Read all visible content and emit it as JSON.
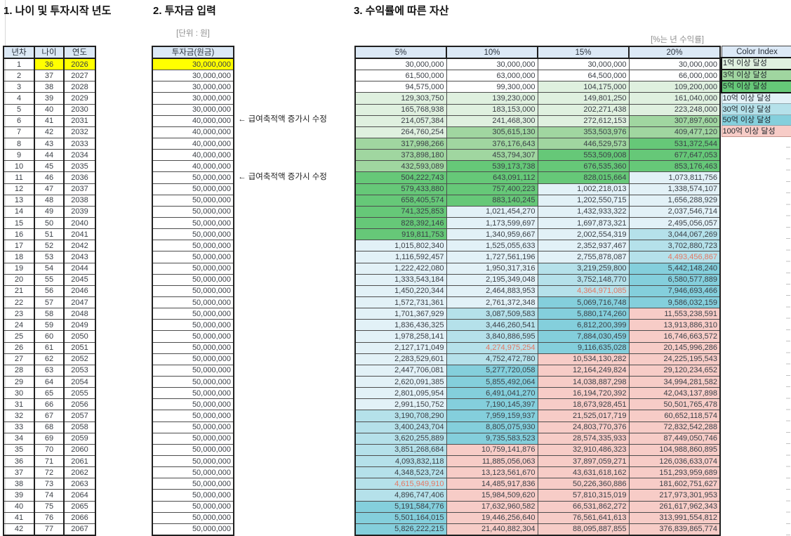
{
  "titles": {
    "section1": "1. 나이 및 투자시작 년도",
    "section2": "2. 투자금 입력",
    "section3": "3. 수익률에 따른 자산"
  },
  "labels": {
    "unit_note": "[단위 : 원]",
    "rate_note": "[%는 년 수익률]"
  },
  "left_table": {
    "headers": [
      "년차",
      "나이",
      "연도"
    ],
    "rows": [
      [
        1,
        36,
        2026
      ],
      [
        2,
        37,
        2027
      ],
      [
        3,
        38,
        2028
      ],
      [
        4,
        39,
        2029
      ],
      [
        5,
        40,
        2030
      ],
      [
        6,
        41,
        2031
      ],
      [
        7,
        42,
        2032
      ],
      [
        8,
        43,
        2033
      ],
      [
        9,
        44,
        2034
      ],
      [
        10,
        45,
        2035
      ],
      [
        11,
        46,
        2036
      ],
      [
        12,
        47,
        2037
      ],
      [
        13,
        48,
        2038
      ],
      [
        14,
        49,
        2039
      ],
      [
        15,
        50,
        2040
      ],
      [
        16,
        51,
        2041
      ],
      [
        17,
        52,
        2042
      ],
      [
        18,
        53,
        2043
      ],
      [
        19,
        54,
        2044
      ],
      [
        20,
        55,
        2045
      ],
      [
        21,
        56,
        2046
      ],
      [
        22,
        57,
        2047
      ],
      [
        23,
        58,
        2048
      ],
      [
        24,
        59,
        2049
      ],
      [
        25,
        60,
        2050
      ],
      [
        26,
        61,
        2051
      ],
      [
        27,
        62,
        2052
      ],
      [
        28,
        63,
        2053
      ],
      [
        29,
        64,
        2054
      ],
      [
        30,
        65,
        2055
      ],
      [
        31,
        66,
        2056
      ],
      [
        32,
        67,
        2057
      ],
      [
        33,
        68,
        2058
      ],
      [
        34,
        69,
        2059
      ],
      [
        35,
        70,
        2060
      ],
      [
        36,
        71,
        2061
      ],
      [
        37,
        72,
        2062
      ],
      [
        38,
        73,
        2063
      ],
      [
        39,
        74,
        2064
      ],
      [
        40,
        75,
        2065
      ],
      [
        41,
        76,
        2066
      ],
      [
        42,
        77,
        2067
      ]
    ]
  },
  "invest_table": {
    "header": "투자금(원금)",
    "values": [
      30000000,
      30000000,
      30000000,
      30000000,
      30000000,
      40000000,
      40000000,
      40000000,
      40000000,
      40000000,
      50000000,
      50000000,
      50000000,
      50000000,
      50000000,
      50000000,
      50000000,
      50000000,
      50000000,
      50000000,
      50000000,
      50000000,
      50000000,
      50000000,
      50000000,
      50000000,
      50000000,
      50000000,
      50000000,
      50000000,
      50000000,
      50000000,
      50000000,
      50000000,
      50000000,
      50000000,
      50000000,
      50000000,
      50000000,
      50000000,
      50000000,
      50000000
    ],
    "annotations": [
      {
        "row": 6,
        "text": "← 급여축적액 증가시 수정"
      },
      {
        "row": 11,
        "text": "← 급여축적액 증가시 수정"
      }
    ]
  },
  "asset_table": {
    "headers": [
      "5%",
      "10%",
      "15%",
      "20%"
    ],
    "rows": [
      [
        30000000,
        30000000,
        30000000,
        30000000
      ],
      [
        61500000,
        63000000,
        64500000,
        66000000
      ],
      [
        94575000,
        99300000,
        104175000,
        109200000
      ],
      [
        129303750,
        139230000,
        149801250,
        161040000
      ],
      [
        165768938,
        183153000,
        202271438,
        223248000
      ],
      [
        214057384,
        241468300,
        272612153,
        307897600
      ],
      [
        264760254,
        305615130,
        353503976,
        409477120
      ],
      [
        317998266,
        376176643,
        446529573,
        531372544
      ],
      [
        373898180,
        453794307,
        553509008,
        677647053
      ],
      [
        432593089,
        539173738,
        676535360,
        853176463
      ],
      [
        504222743,
        643091112,
        828015664,
        1073811756
      ],
      [
        579433880,
        757400223,
        1002218013,
        1338574107
      ],
      [
        658405574,
        883140245,
        1202550715,
        1656288929
      ],
      [
        741325853,
        1021454270,
        1432933322,
        2037546714
      ],
      [
        828392146,
        1173599697,
        1697873321,
        2495056057
      ],
      [
        919811753,
        1340959667,
        2002554319,
        3044067269
      ],
      [
        1015802340,
        1525055633,
        2352937467,
        3702880723
      ],
      [
        1116592457,
        1727561196,
        2755878087,
        4493456867
      ],
      [
        1222422080,
        1950317316,
        3219259800,
        5442148240
      ],
      [
        1333543184,
        2195349048,
        3752148770,
        6580577889
      ],
      [
        1450220344,
        2464883953,
        4364971085,
        7946693466
      ],
      [
        1572731361,
        2761372348,
        5069716748,
        9586032159
      ],
      [
        1701367929,
        3087509583,
        5880174260,
        11553238591
      ],
      [
        1836436325,
        3446260541,
        6812200399,
        13913886310
      ],
      [
        1978258141,
        3840886595,
        7884030459,
        16746663572
      ],
      [
        2127171049,
        4274975254,
        9116635028,
        20145996286
      ],
      [
        2283529601,
        4752472780,
        10534130282,
        24225195543
      ],
      [
        2447706081,
        5277720058,
        12164249824,
        29120234652
      ],
      [
        2620091385,
        5855492064,
        14038887298,
        34994281582
      ],
      [
        2801095954,
        6491041270,
        16194720392,
        42043137898
      ],
      [
        2991150752,
        7190145397,
        18673928451,
        50501765478
      ],
      [
        3190708290,
        7959159937,
        21525017719,
        60652118574
      ],
      [
        3400243704,
        8805075930,
        24803770376,
        72832542288
      ],
      [
        3620255889,
        9735583523,
        28574335933,
        87449050746
      ],
      [
        3851268684,
        10759141876,
        32910486323,
        104988860895
      ],
      [
        4093832118,
        11885056063,
        37897059271,
        126036633074
      ],
      [
        4348523724,
        13123561670,
        43631618162,
        151293959689
      ],
      [
        4615949910,
        14485917836,
        50226360886,
        181602751627
      ],
      [
        4896747406,
        15984509620,
        57810315019,
        217973301953
      ],
      [
        5191584776,
        17632960582,
        66531862272,
        261617962343
      ],
      [
        5501164015,
        19446256640,
        76561641613,
        313991554812
      ],
      [
        5826222215,
        21440882304,
        88095887855,
        376839865774
      ]
    ],
    "red_cells": [
      [
        18,
        4
      ],
      [
        21,
        3
      ],
      [
        26,
        2
      ],
      [
        38,
        1
      ]
    ]
  },
  "legend": {
    "title": "Color Index",
    "items": [
      {
        "label": "1억 이상 달성",
        "color": "#DFF0DF"
      },
      {
        "label": "3억 이상 달성",
        "color": "#A0D6A0"
      },
      {
        "label": "5억 이상 달성",
        "color": "#66C878"
      },
      {
        "label": "10억 이상 달성",
        "color": "#E2F1F7"
      },
      {
        "label": "30억 이상 달성",
        "color": "#B5E1EA"
      },
      {
        "label": "50억 이상 달성",
        "color": "#84CFDC"
      },
      {
        "label": "100억 이상 달성",
        "color": "#F7CCC7"
      }
    ]
  },
  "colors": {
    "header_fill": "#DCE9F6",
    "highlight_yellow": "#FFFF00",
    "red_font": "#E47864",
    "thresholds": [
      {
        "min": 10000000000,
        "color": "#F7CCC7"
      },
      {
        "min": 5000000000,
        "color": "#84CFDC"
      },
      {
        "min": 3000000000,
        "color": "#B5E1EA"
      },
      {
        "min": 1000000000,
        "color": "#E2F1F7"
      },
      {
        "min": 500000000,
        "color": "#66C878"
      },
      {
        "min": 300000000,
        "color": "#A0D6A0"
      },
      {
        "min": 100000000,
        "color": "#DFF0DF"
      }
    ]
  }
}
